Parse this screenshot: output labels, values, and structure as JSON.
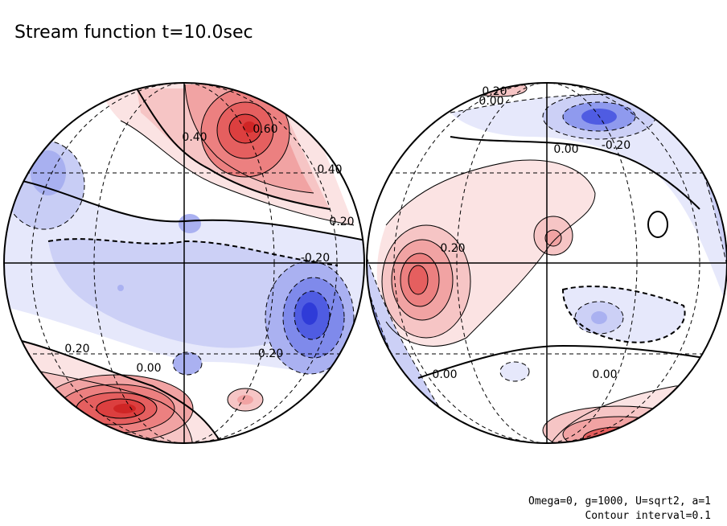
{
  "chart_data": {
    "type": "contour",
    "title": "Stream function t=10.0sec",
    "annotations": [
      "Omega=0, g=1000, U=sqrt2, a=1",
      "Contour interval=0.1"
    ],
    "contour_interval": 0.1,
    "projection": "orthographic, two hemispheres",
    "colors": {
      "positive": "#e83030",
      "negative": "#3040e0",
      "outline": "#000000"
    },
    "hemispheres": [
      {
        "name": "left",
        "features": [
          {
            "type": "max",
            "value": 0.7,
            "label": "0.60"
          },
          {
            "type": "max",
            "value": 0.6
          },
          {
            "type": "min",
            "value": -0.5
          },
          {
            "type": "min",
            "value": -0.3
          }
        ],
        "contour_labels": [
          "0.40",
          "0.60",
          "0.40",
          "0.20",
          "-0.20",
          "0.20",
          "0.00",
          "-0.20"
        ]
      },
      {
        "name": "right",
        "features": [
          {
            "type": "max",
            "value": 0.5
          },
          {
            "type": "max",
            "value": 0.3
          },
          {
            "type": "max",
            "value": 0.6
          },
          {
            "type": "min",
            "value": -0.5
          },
          {
            "type": "min",
            "value": -0.2
          }
        ],
        "contour_labels": [
          "0.20",
          "0.00",
          "0.00",
          "-0.20",
          "0.20",
          "0.00",
          "0.00"
        ]
      }
    ]
  }
}
